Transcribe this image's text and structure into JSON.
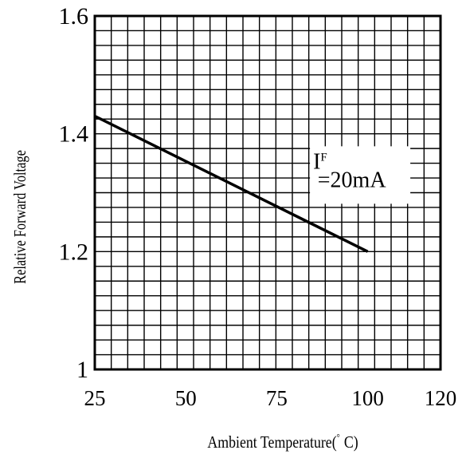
{
  "chart_data": {
    "type": "line",
    "title": "",
    "xlabel": "Ambient Temperature(",
    "xlabel_degree": "°",
    "xlabel_unit": "C)",
    "ylabel": "Relative Forward Voltage",
    "xlim": [
      25,
      120
    ],
    "ylim": [
      1.0,
      1.6
    ],
    "x_ticks": [
      "25",
      "50",
      "75",
      "100",
      "120"
    ],
    "y_ticks": [
      "1",
      "1.2",
      "1.4",
      "1.6"
    ],
    "grid": true,
    "series": [
      {
        "x": [
          25,
          100
        ],
        "y": [
          1.43,
          1.2
        ]
      }
    ],
    "annotation": {
      "main": "I",
      "superscript": "F",
      "value": "=20mA",
      "x": 85,
      "y": 1.33
    },
    "colors": {
      "line": "#000000",
      "grid": "#000000",
      "background": "#ffffff"
    }
  }
}
